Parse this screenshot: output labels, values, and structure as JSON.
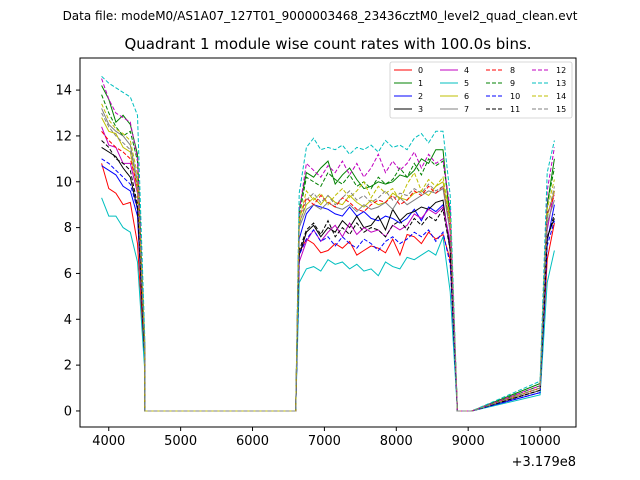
{
  "figure": {
    "suptitle": "Data file: modeM0/AS1A07_127T01_9000003468_23436cztM0_level2_quad_clean.evt",
    "title": "Quadrant 1 module wise count rates with 100.0s bins.",
    "x_offset_label": "+3.179e8"
  },
  "chart_data": {
    "type": "line",
    "title": "Quadrant 1 module wise count rates with 100.0s bins.",
    "xlabel": "",
    "ylabel": "",
    "x_offset": 317900000,
    "xlim": [
      3600,
      10500
    ],
    "ylim": [
      -0.7,
      15.4
    ],
    "xticks": [
      4000,
      5000,
      6000,
      7000,
      8000,
      9000,
      10000
    ],
    "yticks": [
      0,
      2,
      4,
      6,
      8,
      10,
      12,
      14
    ],
    "xtick_labels": [
      "4000",
      "5000",
      "6000",
      "7000",
      "8000",
      "9000",
      "10000"
    ],
    "ytick_labels": [
      "0",
      "2",
      "4",
      "6",
      "8",
      "10",
      "12",
      "14"
    ],
    "grid": false,
    "legend_position": "top-right",
    "segments": [
      {
        "start": 3900,
        "step": 100,
        "count": 7,
        "gap_x": [
          4500,
          6600
        ]
      },
      {
        "start": 6650,
        "step": 100,
        "count": 22,
        "gap_x": [
          8850,
          9000
        ]
      },
      {
        "start": 10000,
        "step": 100,
        "count": 3
      }
    ],
    "series": [
      {
        "name": "0",
        "color": "#ff0000",
        "dash": "solid",
        "s1": [
          10.8,
          9.7,
          9.5,
          9.0,
          9.1,
          7.3,
          2.0
        ],
        "s2": [
          6.9,
          7.5,
          7.3,
          6.9,
          7.0,
          7.3,
          7.1,
          7.4,
          6.8,
          7.0,
          7.2,
          7.1,
          6.9,
          7.5,
          6.8,
          7.7,
          7.6,
          7.3,
          7.8,
          7.5,
          7.7,
          6.6
        ],
        "s3": [
          0.9,
          6.6,
          8.2
        ]
      },
      {
        "name": "1",
        "color": "#008000",
        "dash": "solid",
        "s1": [
          14.2,
          13.6,
          12.6,
          12.9,
          12.5,
          11.2,
          3.0
        ],
        "s2": [
          8.8,
          10.4,
          10.2,
          10.6,
          10.9,
          9.9,
          10.3,
          10.6,
          10.1,
          9.7,
          9.8,
          10.0,
          9.9,
          10.0,
          10.3,
          10.2,
          10.5,
          11.0,
          10.8,
          11.4,
          11.4,
          8.2
        ],
        "s3": [
          1.2,
          9.0,
          11.0
        ]
      },
      {
        "name": "2",
        "color": "#0000ff",
        "dash": "solid",
        "s1": [
          10.7,
          10.5,
          10.3,
          9.8,
          9.6,
          8.5,
          2.5
        ],
        "s2": [
          7.5,
          8.6,
          9.0,
          8.9,
          8.8,
          8.6,
          8.5,
          8.9,
          8.5,
          8.7,
          8.4,
          8.3,
          8.5,
          8.4,
          8.2,
          8.4,
          8.8,
          8.3,
          8.9,
          8.7,
          9.0,
          7.3
        ],
        "s3": [
          0.8,
          7.4,
          9.0
        ]
      },
      {
        "name": "3",
        "color": "#000000",
        "dash": "solid",
        "s1": [
          11.5,
          11.3,
          11.1,
          10.6,
          10.2,
          8.8,
          2.3
        ],
        "s2": [
          6.8,
          7.8,
          8.1,
          7.6,
          8.0,
          7.8,
          8.3,
          8.0,
          8.5,
          8.0,
          8.1,
          8.5,
          7.9,
          8.8,
          8.3,
          8.6,
          8.7,
          8.9,
          8.8,
          9.1,
          9.2,
          7.0
        ],
        "s3": [
          0.9,
          7.6,
          8.4
        ]
      },
      {
        "name": "4",
        "color": "#c000c0",
        "dash": "solid",
        "s1": [
          12.4,
          11.6,
          11.5,
          10.8,
          10.8,
          9.5,
          2.6
        ],
        "s2": [
          6.5,
          7.4,
          7.9,
          7.4,
          7.8,
          8.1,
          7.6,
          8.2,
          7.7,
          8.0,
          7.8,
          7.9,
          7.6,
          8.1,
          7.9,
          8.1,
          8.6,
          8.4,
          8.8,
          8.6,
          8.9,
          7.4
        ],
        "s3": [
          1.0,
          7.9,
          9.6
        ]
      },
      {
        "name": "5",
        "color": "#00bfbf",
        "dash": "solid",
        "s1": [
          9.3,
          8.5,
          8.5,
          8.0,
          7.8,
          6.5,
          1.8
        ],
        "s2": [
          5.6,
          6.2,
          6.3,
          6.1,
          6.6,
          6.4,
          6.5,
          6.2,
          6.4,
          6.1,
          6.2,
          5.9,
          6.5,
          6.3,
          6.2,
          6.7,
          6.6,
          6.8,
          7.0,
          6.8,
          7.6,
          5.2
        ],
        "s3": [
          0.7,
          5.6,
          7.0
        ]
      },
      {
        "name": "6",
        "color": "#bfbf00",
        "dash": "solid",
        "s1": [
          12.8,
          12.2,
          12.1,
          11.5,
          11.3,
          9.6,
          2.6
        ],
        "s2": [
          8.2,
          9.0,
          9.3,
          9.0,
          9.4,
          9.1,
          9.0,
          9.4,
          9.1,
          8.9,
          9.2,
          9.0,
          9.1,
          9.5,
          9.3,
          9.2,
          9.5,
          9.6,
          9.4,
          9.8,
          10.0,
          8.2
        ],
        "s3": [
          1.0,
          8.5,
          9.6
        ]
      },
      {
        "name": "7",
        "color": "#808080",
        "dash": "solid",
        "s1": [
          13.2,
          12.5,
          12.2,
          12.0,
          11.6,
          10.0,
          2.8
        ],
        "s2": [
          8.0,
          8.8,
          9.0,
          8.8,
          9.1,
          8.9,
          8.8,
          9.0,
          8.7,
          9.0,
          8.8,
          8.9,
          9.1,
          8.8,
          9.3,
          9.0,
          9.2,
          9.4,
          9.6,
          9.5,
          9.7,
          7.8
        ],
        "s3": [
          0.9,
          8.2,
          9.2
        ]
      },
      {
        "name": "8",
        "color": "#ff0000",
        "dash": "dashed",
        "s1": [
          12.2,
          11.8,
          11.5,
          11.3,
          11.0,
          9.8,
          2.7
        ],
        "s2": [
          8.4,
          9.3,
          9.0,
          9.4,
          9.1,
          8.9,
          9.3,
          9.1,
          8.8,
          8.7,
          9.0,
          9.2,
          9.1,
          9.4,
          9.0,
          9.2,
          9.6,
          9.4,
          9.8,
          9.5,
          9.8,
          8.0
        ],
        "s3": [
          1.0,
          8.6,
          9.4
        ]
      },
      {
        "name": "9",
        "color": "#008000",
        "dash": "dashed",
        "s1": [
          13.8,
          13.0,
          12.4,
          12.0,
          12.2,
          10.9,
          2.9
        ],
        "s2": [
          8.5,
          10.2,
          10.0,
          9.8,
          10.4,
          10.1,
          9.9,
          10.3,
          9.8,
          10.0,
          9.7,
          10.2,
          9.9,
          10.1,
          10.6,
          10.2,
          10.8,
          10.3,
          11.0,
          10.7,
          10.9,
          8.6
        ],
        "s3": [
          1.1,
          9.0,
          10.6
        ]
      },
      {
        "name": "10",
        "color": "#0000ff",
        "dash": "dashed",
        "s1": [
          11.0,
          10.8,
          10.5,
          10.2,
          9.9,
          8.8,
          2.4
        ],
        "s2": [
          6.8,
          7.5,
          7.9,
          7.4,
          7.6,
          7.2,
          7.6,
          7.3,
          7.1,
          7.5,
          7.3,
          7.0,
          7.4,
          7.6,
          7.3,
          7.5,
          7.8,
          7.6,
          7.9,
          7.4,
          7.8,
          6.4
        ],
        "s3": [
          0.8,
          7.2,
          8.3
        ]
      },
      {
        "name": "11",
        "color": "#000000",
        "dash": "dashed",
        "s1": [
          11.8,
          11.5,
          11.0,
          10.8,
          10.5,
          9.0,
          2.4
        ],
        "s2": [
          7.0,
          7.9,
          8.2,
          7.7,
          8.3,
          7.6,
          8.0,
          7.7,
          8.2,
          7.8,
          8.0,
          7.9,
          7.6,
          8.1,
          8.3,
          7.9,
          8.4,
          8.1,
          8.5,
          8.3,
          8.8,
          7.0
        ],
        "s3": [
          0.9,
          7.5,
          8.6
        ]
      },
      {
        "name": "12",
        "color": "#c000c0",
        "dash": "dashed",
        "s1": [
          14.5,
          13.6,
          13.0,
          12.8,
          12.6,
          11.0,
          3.0
        ],
        "s2": [
          8.7,
          10.8,
          10.5,
          10.2,
          10.7,
          10.4,
          10.9,
          10.3,
          10.8,
          10.2,
          10.6,
          11.2,
          10.4,
          10.9,
          10.5,
          10.8,
          11.3,
          10.6,
          11.2,
          10.8,
          11.0,
          8.8
        ],
        "s3": [
          1.1,
          9.6,
          11.5
        ]
      },
      {
        "name": "13",
        "color": "#00bfbf",
        "dash": "dashed",
        "s1": [
          14.6,
          14.3,
          14.1,
          13.9,
          13.7,
          12.9,
          3.3
        ],
        "s2": [
          9.5,
          11.5,
          11.9,
          11.4,
          11.5,
          11.4,
          11.6,
          11.2,
          11.5,
          11.4,
          11.6,
          11.3,
          11.8,
          11.5,
          11.6,
          11.4,
          11.9,
          12.1,
          11.7,
          12.2,
          12.2,
          9.4
        ],
        "s3": [
          1.3,
          10.4,
          11.8
        ]
      },
      {
        "name": "14",
        "color": "#bfbf00",
        "dash": "dashed",
        "s1": [
          13.4,
          12.7,
          12.3,
          12.1,
          11.8,
          10.3,
          2.8
        ],
        "s2": [
          8.3,
          9.6,
          9.2,
          9.5,
          9.0,
          9.4,
          9.7,
          9.3,
          9.6,
          10.0,
          9.3,
          9.8,
          9.5,
          9.7,
          9.2,
          9.9,
          10.4,
          9.6,
          10.1,
          9.8,
          10.2,
          8.4
        ],
        "s3": [
          1.0,
          8.8,
          10.1
        ]
      },
      {
        "name": "15",
        "color": "#808080",
        "dash": "dashed",
        "s1": [
          13.0,
          12.4,
          12.0,
          11.7,
          11.4,
          9.9,
          2.7
        ],
        "s2": [
          8.1,
          9.2,
          9.5,
          9.1,
          9.4,
          9.0,
          9.3,
          9.6,
          9.2,
          9.4,
          9.1,
          9.3,
          9.6,
          9.2,
          9.5,
          9.4,
          9.7,
          9.5,
          9.9,
          9.6,
          9.8,
          8.0
        ],
        "s3": [
          1.0,
          8.4,
          9.8
        ]
      }
    ]
  }
}
